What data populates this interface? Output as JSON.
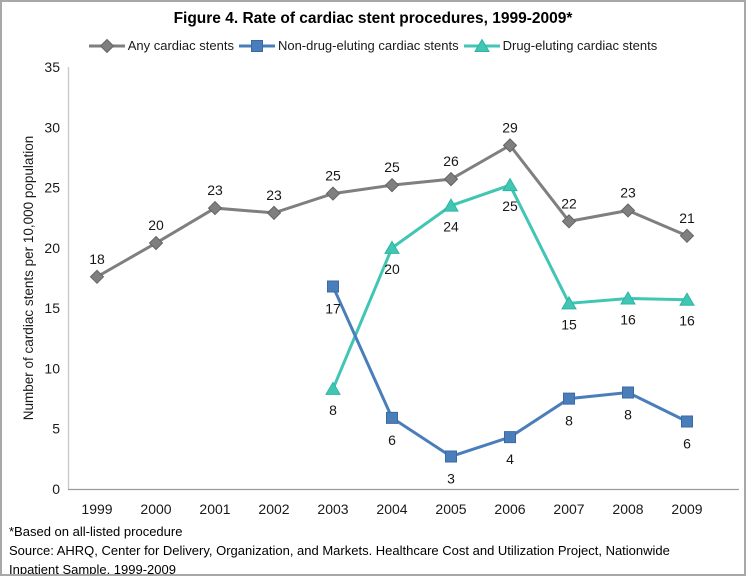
{
  "window": {
    "background": "#ffffff",
    "border_color": "#a8a8a8"
  },
  "chart_data": {
    "type": "line",
    "title": "Figure 4. Rate of cardiac stent procedures, 1999-2009*",
    "ylabel": "Number of cardiac stents per 10,000 population",
    "xlabel": "",
    "x_categories": [
      "1999",
      "2000",
      "2001",
      "2002",
      "2003",
      "2004",
      "2005",
      "2006",
      "2007",
      "2008",
      "2009"
    ],
    "ylim": [
      0,
      35
    ],
    "yticks": [
      0,
      5,
      10,
      15,
      20,
      25,
      30,
      35
    ],
    "grid": false,
    "legend_position": "top",
    "axis_color_y": "#c8c8c8",
    "axis_color_x": "#9a9a9a",
    "text_color": "#1a1a1a",
    "series": [
      {
        "name": "Any cardiac stents",
        "marker": "diamond",
        "color": "#7f7f7f",
        "marker_stroke": "#646464",
        "label_position": "above",
        "values": [
          17.6,
          20.4,
          23.3,
          22.9,
          24.5,
          25.2,
          25.7,
          28.5,
          22.2,
          23.1,
          21.0
        ],
        "point_labels": [
          "18",
          "20",
          "23",
          "23",
          "25",
          "25",
          "26",
          "29",
          "22",
          "23",
          "21"
        ]
      },
      {
        "name": "Non-drug-eluting cardiac stents",
        "marker": "square",
        "color": "#4a7ebb",
        "marker_stroke": "#3a69a4",
        "label_position": "below",
        "values": [
          null,
          null,
          null,
          null,
          16.8,
          5.9,
          2.7,
          4.3,
          7.5,
          8.0,
          5.6
        ],
        "point_labels": [
          null,
          null,
          null,
          null,
          "17",
          "6",
          "3",
          "4",
          "8",
          "8",
          "6"
        ]
      },
      {
        "name": "Drug-eluting cardiac stents",
        "marker": "triangle",
        "color": "#41c6b4",
        "marker_stroke": "#2db5a3",
        "label_position": "below",
        "values": [
          null,
          null,
          null,
          null,
          8.3,
          20.0,
          23.5,
          25.2,
          15.4,
          15.8,
          15.7
        ],
        "point_labels": [
          null,
          null,
          null,
          null,
          "8",
          "20",
          "24",
          "25",
          "15",
          "16",
          "16"
        ]
      }
    ],
    "footnotes": [
      "*Based on all-listed procedure",
      "Source: AHRQ, Center for Delivery, Organization, and Markets.  Healthcare Cost and Utilization Project, Nationwide",
      "Inpatient Sample,  1999-2009"
    ]
  }
}
